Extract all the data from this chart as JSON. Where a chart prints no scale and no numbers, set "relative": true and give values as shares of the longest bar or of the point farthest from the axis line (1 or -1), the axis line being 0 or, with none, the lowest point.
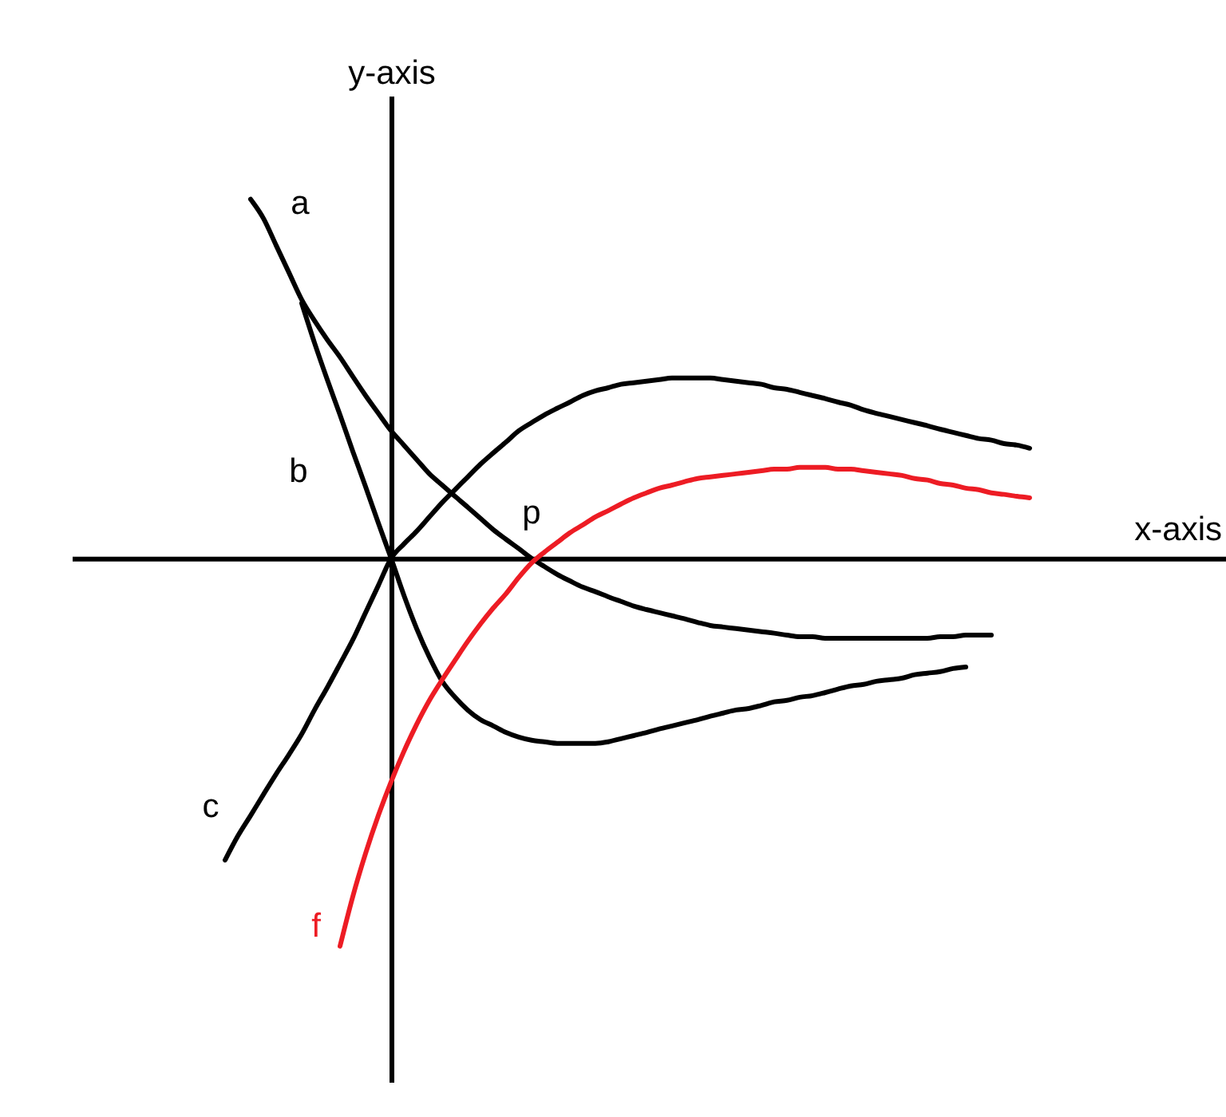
{
  "chart_data": {
    "type": "line",
    "xlabel": "x-axis",
    "ylabel": "y-axis",
    "relative": true,
    "tick_labels": false,
    "legend": false,
    "line_style": "solid",
    "annotations": [
      "p"
    ],
    "categories": [
      null,
      null,
      null,
      null,
      null,
      null,
      null,
      null,
      null,
      null,
      null,
      null,
      null,
      null,
      null,
      null,
      null,
      null,
      null,
      null,
      null,
      null,
      null,
      null,
      null,
      null,
      null,
      null,
      null,
      null,
      null,
      null,
      null,
      null,
      null,
      null,
      null,
      null,
      null,
      null,
      null,
      null,
      null,
      null,
      null,
      null,
      null,
      null,
      null,
      null,
      null,
      null,
      null,
      null,
      null,
      null,
      null,
      null,
      null,
      null,
      null,
      null,
      null,
      null
    ],
    "series": [
      {
        "name": "a",
        "color": "#000000",
        "values": [
          null,
          null,
          0.926,
          0.877,
          0.807,
          0.737,
          0.667,
          0.613,
          0.564,
          0.519,
          0.469,
          0.42,
          0.374,
          0.329,
          0.292,
          0.255,
          0.218,
          0.189,
          0.16,
          0.132,
          0.103,
          0.074,
          0.049,
          0.025,
          0,
          -0.021,
          -0.041,
          -0.058,
          -0.074,
          -0.086,
          -0.099,
          -0.111,
          -0.123,
          -0.132,
          -0.14,
          -0.148,
          -0.156,
          -0.165,
          -0.173,
          -0.177,
          -0.181,
          -0.185,
          -0.189,
          -0.193,
          -0.198,
          -0.202,
          -0.202,
          -0.206,
          -0.206,
          -0.206,
          -0.206,
          -0.206,
          -0.206,
          -0.206,
          -0.206,
          -0.206,
          -0.202,
          -0.202,
          -0.198,
          -0.198,
          -0.198,
          null,
          null,
          null
        ]
      },
      {
        "name": "b",
        "color": "#000000",
        "values": [
          null,
          null,
          null,
          null,
          null,
          null,
          0.658,
          0.556,
          0.461,
          0.37,
          0.276,
          0.185,
          0.091,
          0,
          -0.095,
          -0.181,
          -0.255,
          -0.317,
          -0.358,
          -0.391,
          -0.416,
          -0.432,
          -0.449,
          -0.461,
          -0.469,
          -0.473,
          -0.477,
          -0.477,
          -0.477,
          -0.477,
          -0.473,
          -0.465,
          -0.457,
          -0.449,
          -0.44,
          -0.432,
          -0.424,
          -0.416,
          -0.407,
          -0.399,
          -0.391,
          -0.387,
          -0.379,
          -0.37,
          -0.366,
          -0.358,
          -0.354,
          -0.346,
          -0.337,
          -0.329,
          -0.325,
          -0.317,
          -0.313,
          -0.309,
          -0.3,
          -0.296,
          -0.292,
          -0.284,
          -0.28,
          null,
          null,
          null,
          null,
          null
        ]
      },
      {
        "name": "c",
        "color": "#000000",
        "values": [
          -0.778,
          -0.716,
          -0.663,
          -0.609,
          -0.556,
          -0.506,
          -0.453,
          -0.391,
          -0.333,
          -0.272,
          -0.21,
          -0.14,
          -0.07,
          0,
          0.037,
          0.07,
          0.107,
          0.144,
          0.177,
          0.21,
          0.243,
          0.272,
          0.3,
          0.329,
          0.35,
          0.37,
          0.387,
          0.403,
          0.42,
          0.432,
          0.44,
          0.449,
          0.453,
          0.457,
          0.461,
          0.465,
          0.465,
          0.465,
          0.465,
          0.461,
          0.457,
          0.453,
          0.449,
          0.44,
          0.436,
          0.428,
          0.42,
          0.412,
          0.403,
          0.395,
          0.383,
          0.374,
          0.366,
          0.358,
          0.35,
          0.342,
          0.333,
          0.325,
          0.317,
          0.309,
          0.305,
          0.296,
          0.292,
          0.284
        ]
      },
      {
        "name": "f",
        "color": "#ed1c24",
        "values": [
          null,
          null,
          null,
          null,
          null,
          null,
          null,
          null,
          null,
          -1,
          -0.872,
          -0.761,
          -0.663,
          -0.576,
          -0.498,
          -0.428,
          -0.366,
          -0.313,
          -0.263,
          -0.214,
          -0.169,
          -0.128,
          -0.091,
          -0.049,
          -0.012,
          0.016,
          0.041,
          0.066,
          0.086,
          0.107,
          0.123,
          0.14,
          0.156,
          0.169,
          0.181,
          0.189,
          0.198,
          0.206,
          0.21,
          0.214,
          0.218,
          0.222,
          0.226,
          0.23,
          0.23,
          0.235,
          0.235,
          0.235,
          0.23,
          0.23,
          0.226,
          0.222,
          0.218,
          0.214,
          0.206,
          0.202,
          0.193,
          0.189,
          0.181,
          0.177,
          0.169,
          0.165,
          0.16,
          0.156
        ]
      }
    ]
  }
}
